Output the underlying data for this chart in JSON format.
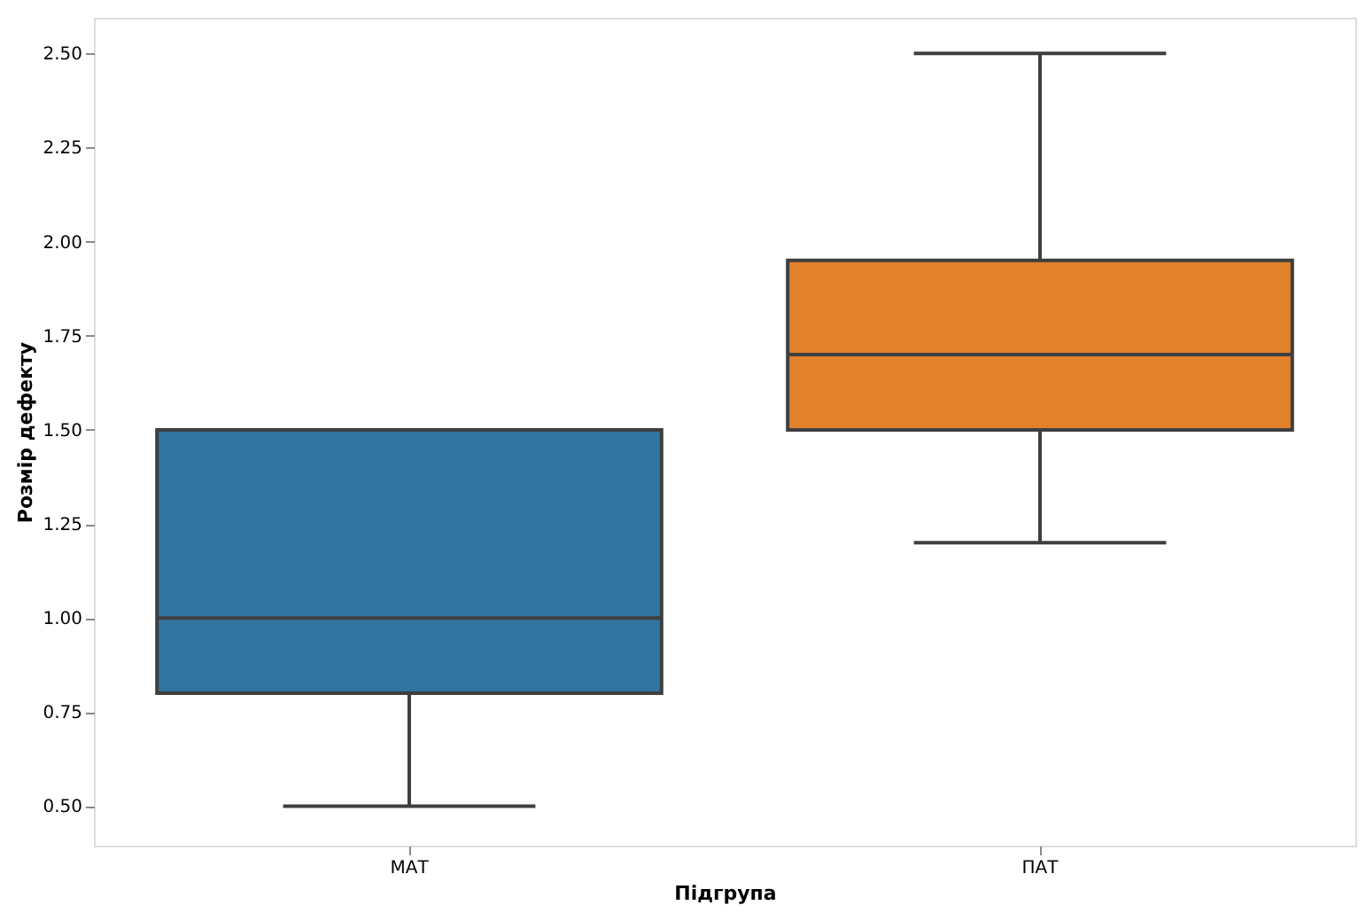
{
  "chart_data": {
    "type": "box",
    "xlabel": "Підгрупа",
    "ylabel": "Розмір дефекту",
    "categories": [
      "МАТ",
      "ПАТ"
    ],
    "colors": [
      "#3274a1",
      "#e1812c"
    ],
    "boxes": [
      {
        "low": 0.5,
        "q1": 0.8,
        "median": 1.0,
        "q3": 1.5,
        "high": 1.5
      },
      {
        "low": 1.2,
        "q1": 1.5,
        "median": 1.7,
        "q3": 1.95,
        "high": 2.5
      }
    ],
    "ylim": [
      0.395,
      2.595
    ],
    "yticks": [
      {
        "value": 0.5,
        "label": "0.50"
      },
      {
        "value": 0.75,
        "label": "0.75"
      },
      {
        "value": 1.0,
        "label": "1.00"
      },
      {
        "value": 1.25,
        "label": "1.25"
      },
      {
        "value": 1.5,
        "label": "1.50"
      },
      {
        "value": 1.75,
        "label": "1.75"
      },
      {
        "value": 2.0,
        "label": "2.00"
      },
      {
        "value": 2.25,
        "label": "2.25"
      },
      {
        "value": 2.5,
        "label": "2.50"
      }
    ],
    "grid": false,
    "legend": false
  }
}
